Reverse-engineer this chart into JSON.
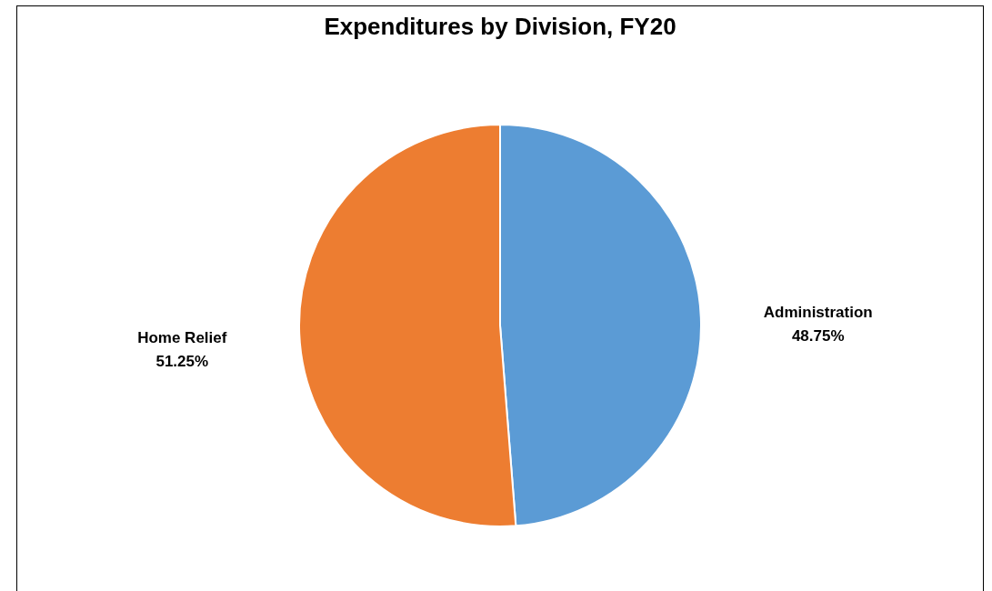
{
  "chart_data": {
    "type": "pie",
    "title": "Expenditures by Division, FY20",
    "categories": [
      "Administration",
      "Home Relief"
    ],
    "values": [
      48.75,
      51.25
    ],
    "colors": [
      "#5b9bd5",
      "#ed7d31"
    ],
    "value_labels": [
      "48.75%",
      "51.25%"
    ]
  }
}
